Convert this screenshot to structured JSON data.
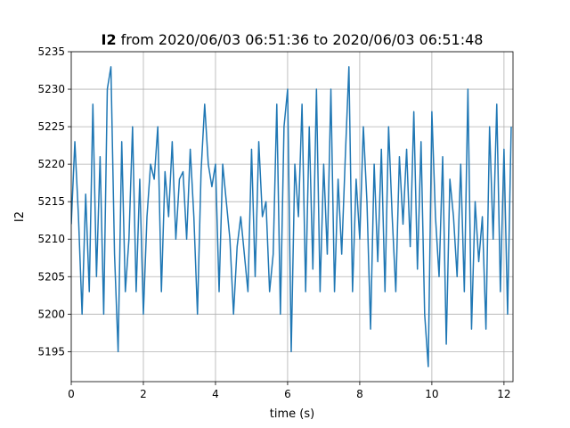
{
  "chart_data": {
    "type": "line",
    "title_bold": "I2",
    "title": "from 2020/06/03 06:51:36 to 2020/06/03 06:51:48",
    "xlabel": "time (s)",
    "ylabel": "I2",
    "xlim": [
      0,
      12.25
    ],
    "ylim": [
      5191,
      5235
    ],
    "xticks": [
      0,
      2,
      4,
      6,
      8,
      10,
      12
    ],
    "yticks": [
      5195,
      5200,
      5205,
      5210,
      5215,
      5220,
      5225,
      5230,
      5235
    ],
    "grid": true,
    "x": [
      0,
      0.1,
      0.2,
      0.3,
      0.4,
      0.5,
      0.6,
      0.7,
      0.8,
      0.9,
      1.0,
      1.1,
      1.2,
      1.3,
      1.4,
      1.5,
      1.6,
      1.7,
      1.8,
      1.9,
      2.0,
      2.1,
      2.2,
      2.3,
      2.4,
      2.5,
      2.6,
      2.7,
      2.8,
      2.9,
      3.0,
      3.1,
      3.2,
      3.3,
      3.4,
      3.5,
      3.6,
      3.7,
      3.8,
      3.9,
      4.0,
      4.1,
      4.2,
      4.3,
      4.4,
      4.5,
      4.6,
      4.7,
      4.8,
      4.9,
      5.0,
      5.1,
      5.2,
      5.3,
      5.4,
      5.5,
      5.6,
      5.7,
      5.8,
      5.9,
      6.0,
      6.1,
      6.2,
      6.3,
      6.4,
      6.5,
      6.6,
      6.7,
      6.8,
      6.9,
      7.0,
      7.1,
      7.2,
      7.3,
      7.4,
      7.5,
      7.6,
      7.7,
      7.8,
      7.9,
      8.0,
      8.1,
      8.2,
      8.3,
      8.4,
      8.5,
      8.6,
      8.7,
      8.8,
      8.9,
      9.0,
      9.1,
      9.2,
      9.3,
      9.4,
      9.5,
      9.6,
      9.7,
      9.8,
      9.9,
      10.0,
      10.1,
      10.2,
      10.3,
      10.4,
      10.5,
      10.6,
      10.7,
      10.8,
      10.9,
      11.0,
      11.1,
      11.2,
      11.3,
      11.4,
      11.5,
      11.6,
      11.7,
      11.8,
      11.9,
      12.0,
      12.1,
      12.2
    ],
    "series": [
      {
        "name": "I2",
        "color": "#1f77b4",
        "values": [
          5212,
          5223,
          5213,
          5200,
          5216,
          5203,
          5228,
          5205,
          5221,
          5200,
          5230,
          5233,
          5208,
          5195,
          5223,
          5203,
          5210,
          5225,
          5203,
          5218,
          5200,
          5213,
          5220,
          5218,
          5225,
          5203,
          5219,
          5213,
          5223,
          5210,
          5218,
          5219,
          5210,
          5222,
          5213,
          5200,
          5219,
          5228,
          5220,
          5217,
          5220,
          5203,
          5220,
          5215,
          5210,
          5200,
          5209,
          5213,
          5208,
          5203,
          5222,
          5205,
          5223,
          5213,
          5215,
          5203,
          5208,
          5228,
          5200,
          5225,
          5230,
          5195,
          5220,
          5213,
          5228,
          5203,
          5225,
          5206,
          5230,
          5203,
          5220,
          5208,
          5230,
          5203,
          5218,
          5208,
          5221,
          5233,
          5203,
          5218,
          5210,
          5225,
          5215,
          5198,
          5220,
          5207,
          5222,
          5203,
          5225,
          5213,
          5203,
          5221,
          5212,
          5222,
          5209,
          5227,
          5206,
          5223,
          5200,
          5193,
          5227,
          5213,
          5205,
          5221,
          5196,
          5218,
          5213,
          5205,
          5220,
          5203,
          5230,
          5198,
          5215,
          5207,
          5213,
          5198,
          5225,
          5210,
          5228,
          5203,
          5222,
          5200,
          5225
        ]
      }
    ]
  }
}
